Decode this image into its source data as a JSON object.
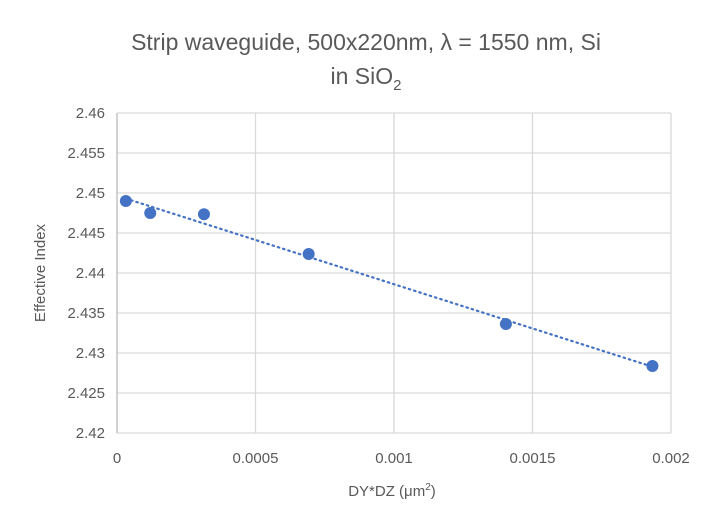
{
  "chart_data": {
    "type": "scatter",
    "title_line1": "Strip waveguide, 500x220nm, λ = 1550 nm, Si",
    "title_line2_main": "in SiO",
    "title_line2_sub": "2",
    "xlabel_main": "DY*DZ (μm",
    "xlabel_sup": "2",
    "xlabel_end": ")",
    "ylabel": "Effective Index",
    "xlim": [
      0,
      0.002
    ],
    "ylim": [
      2.42,
      2.46
    ],
    "xticks": [
      "0",
      "0.0005",
      "0.001",
      "0.0015",
      "0.002"
    ],
    "yticks": [
      "2.42",
      "2.425",
      "2.43",
      "2.435",
      "2.44",
      "2.445",
      "2.45",
      "2.455",
      "2.46"
    ],
    "grid": true,
    "series": [
      {
        "name": "Effective Index",
        "color": "#4472C4",
        "x": [
          3.2e-05,
          0.00012,
          0.000314,
          0.000692,
          0.001404,
          0.001933
        ],
        "y": [
          2.449,
          2.4475,
          2.44735,
          2.44238,
          2.43363,
          2.42838
        ],
        "trendline": "linear, dotted"
      }
    ]
  }
}
